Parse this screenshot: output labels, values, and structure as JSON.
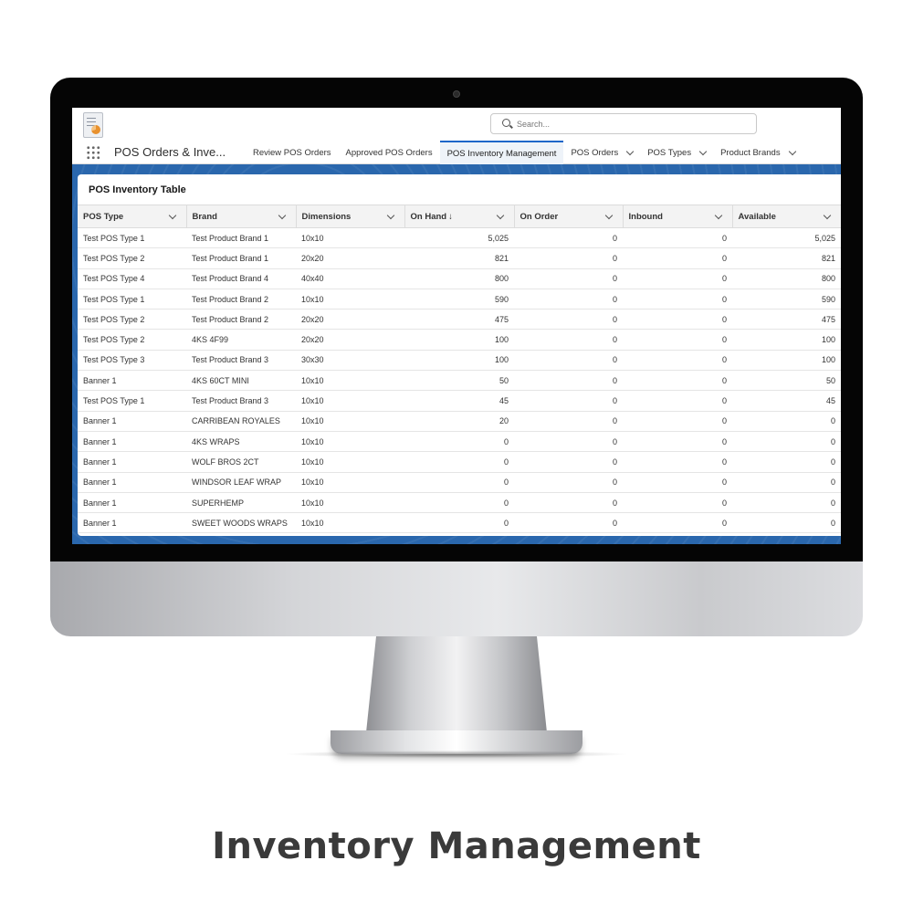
{
  "app": {
    "name": "POS Orders & Inve...",
    "logo_icon": "report-chart-icon",
    "launcher_icon": "app-launcher-grid-icon"
  },
  "search": {
    "placeholder": "Search..."
  },
  "nav": {
    "tabs": [
      {
        "label": "Review POS Orders",
        "has_menu": false,
        "active": false
      },
      {
        "label": "Approved POS Orders",
        "has_menu": false,
        "active": false
      },
      {
        "label": "POS Inventory Management",
        "has_menu": false,
        "active": true
      },
      {
        "label": "POS Orders",
        "has_menu": true,
        "active": false
      },
      {
        "label": "POS Types",
        "has_menu": true,
        "active": false
      },
      {
        "label": "Product Brands",
        "has_menu": true,
        "active": false
      }
    ]
  },
  "card": {
    "title": "POS Inventory Table"
  },
  "table": {
    "columns": [
      "POS Type",
      "Brand",
      "Dimensions",
      "On Hand",
      "On Order",
      "Inbound",
      "Available"
    ],
    "sorted_column": "On Hand",
    "sort_indicator": "↓",
    "rows": [
      [
        "Test POS Type 1",
        "Test Product Brand 1",
        "10x10",
        "5,025",
        "0",
        "0",
        "5,025"
      ],
      [
        "Test POS Type 2",
        "Test Product Brand 1",
        "20x20",
        "821",
        "0",
        "0",
        "821"
      ],
      [
        "Test POS Type 4",
        "Test Product Brand 4",
        "40x40",
        "800",
        "0",
        "0",
        "800"
      ],
      [
        "Test POS Type 1",
        "Test Product Brand 2",
        "10x10",
        "590",
        "0",
        "0",
        "590"
      ],
      [
        "Test POS Type 2",
        "Test Product Brand 2",
        "20x20",
        "475",
        "0",
        "0",
        "475"
      ],
      [
        "Test POS Type 2",
        "4KS 4F99",
        "20x20",
        "100",
        "0",
        "0",
        "100"
      ],
      [
        "Test POS Type 3",
        "Test Product Brand 3",
        "30x30",
        "100",
        "0",
        "0",
        "100"
      ],
      [
        "Banner 1",
        "4KS 60CT MINI",
        "10x10",
        "50",
        "0",
        "0",
        "50"
      ],
      [
        "Test POS Type 1",
        "Test Product Brand 3",
        "10x10",
        "45",
        "0",
        "0",
        "45"
      ],
      [
        "Banner 1",
        "CARRIBEAN ROYALES",
        "10x10",
        "20",
        "0",
        "0",
        "0"
      ],
      [
        "Banner 1",
        "4KS WRAPS",
        "10x10",
        "0",
        "0",
        "0",
        "0"
      ],
      [
        "Banner 1",
        "WOLF BROS 2CT",
        "10x10",
        "0",
        "0",
        "0",
        "0"
      ],
      [
        "Banner 1",
        "WINDSOR LEAF WRAP",
        "10x10",
        "0",
        "0",
        "0",
        "0"
      ],
      [
        "Banner 1",
        "SUPERHEMP",
        "10x10",
        "0",
        "0",
        "0",
        "0"
      ],
      [
        "Banner 1",
        "SWEET WOODS WRAPS",
        "10x10",
        "0",
        "0",
        "0",
        "0"
      ]
    ]
  },
  "caption": "Inventory Management",
  "colors": {
    "accent": "#1b66c9",
    "band": "#2a67ad",
    "bezel": "#050505"
  }
}
